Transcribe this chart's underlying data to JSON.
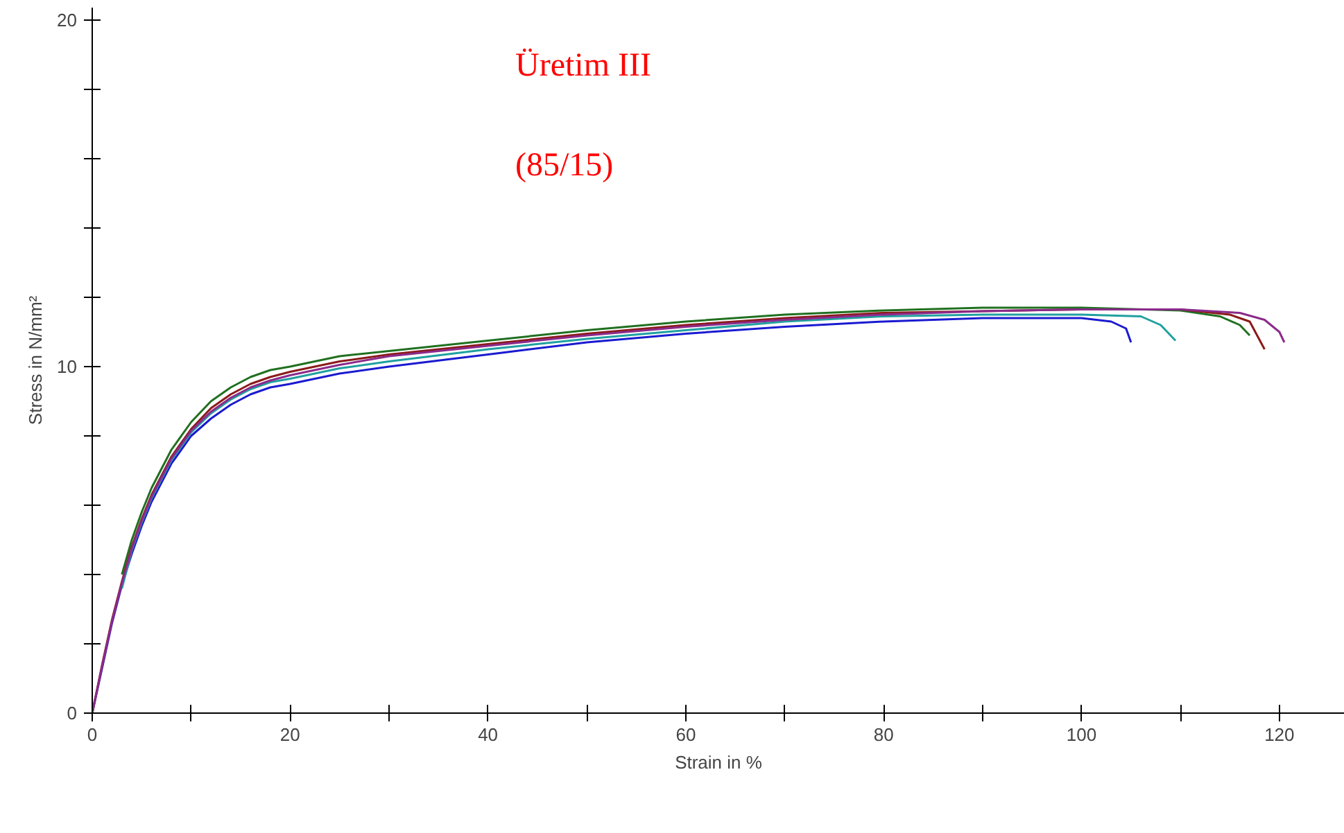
{
  "chart_data": {
    "type": "line",
    "title": "Üretim III",
    "subtitle": "(85/15)",
    "xlabel": "Strain in %",
    "ylabel": "Stress in N/mm²",
    "xlim": [
      0,
      126.6
    ],
    "ylim": [
      0,
      20.36
    ],
    "xticks": [
      0,
      {
        "value": 10,
        "label": null
      },
      20,
      {
        "value": 30,
        "label": null
      },
      40,
      {
        "value": 50,
        "label": null
      },
      60,
      {
        "value": 70,
        "label": null
      },
      80,
      {
        "value": 90,
        "label": null
      },
      100,
      {
        "value": 110,
        "label": null
      },
      120
    ],
    "yticks": [
      0,
      {
        "value": 2,
        "label": null
      },
      {
        "value": 4,
        "label": null
      },
      {
        "value": 6,
        "label": null
      },
      {
        "value": 8,
        "label": null
      },
      10,
      {
        "value": 12,
        "label": null
      },
      {
        "value": 14,
        "label": null
      },
      {
        "value": 16,
        "label": null
      },
      {
        "value": 18,
        "label": null
      },
      20
    ],
    "grid": false,
    "marker": "none",
    "line_style": "solid",
    "series": [
      {
        "color": "#1a1ad0",
        "x": [
          0,
          1,
          2,
          3,
          4,
          5,
          6,
          8,
          10,
          12,
          14,
          16,
          18,
          20,
          25,
          30,
          40,
          50,
          60,
          70,
          80,
          90,
          100,
          103,
          104.5,
          105
        ],
        "values": [
          0,
          1.3,
          2.6,
          3.7,
          4.6,
          5.4,
          6.1,
          7.2,
          8.0,
          8.5,
          8.9,
          9.2,
          9.4,
          9.5,
          9.8,
          10.0,
          10.35,
          10.7,
          10.95,
          11.15,
          11.3,
          11.4,
          11.4,
          11.3,
          11.1,
          10.7
        ]
      },
      {
        "color": "#20a0a0",
        "x": [
          3,
          4,
          5,
          6,
          8,
          10,
          12,
          14,
          16,
          18,
          20,
          25,
          30,
          40,
          50,
          60,
          70,
          80,
          90,
          100,
          106,
          108,
          109.5
        ],
        "values": [
          3.6,
          4.7,
          5.5,
          6.2,
          7.3,
          8.1,
          8.65,
          9.05,
          9.35,
          9.55,
          9.65,
          9.95,
          10.15,
          10.5,
          10.8,
          11.05,
          11.3,
          11.45,
          11.5,
          11.5,
          11.45,
          11.2,
          10.75
        ]
      },
      {
        "color": "#207020",
        "x": [
          3,
          4,
          5,
          6,
          8,
          10,
          12,
          14,
          16,
          18,
          20,
          25,
          30,
          40,
          50,
          60,
          70,
          80,
          90,
          100,
          110,
          114,
          116,
          117
        ],
        "values": [
          4.0,
          5.0,
          5.8,
          6.5,
          7.6,
          8.4,
          9.0,
          9.4,
          9.7,
          9.9,
          10.0,
          10.3,
          10.45,
          10.75,
          11.05,
          11.3,
          11.5,
          11.62,
          11.7,
          11.7,
          11.62,
          11.45,
          11.2,
          10.9
        ]
      },
      {
        "color": "#8b1a1a",
        "x": [
          0,
          1,
          2,
          3,
          4,
          5,
          6,
          8,
          10,
          12,
          14,
          16,
          18,
          20,
          25,
          30,
          40,
          50,
          60,
          70,
          80,
          90,
          100,
          110,
          115,
          117,
          118.5
        ],
        "values": [
          0,
          1.4,
          2.7,
          3.8,
          4.8,
          5.6,
          6.3,
          7.4,
          8.2,
          8.8,
          9.2,
          9.5,
          9.7,
          9.85,
          10.15,
          10.35,
          10.65,
          10.95,
          11.2,
          11.4,
          11.55,
          11.6,
          11.65,
          11.65,
          11.5,
          11.3,
          10.5
        ]
      },
      {
        "color": "#8b2a8b",
        "x": [
          0,
          1,
          2,
          3,
          4,
          5,
          6,
          8,
          10,
          12,
          14,
          16,
          18,
          20,
          25,
          30,
          40,
          50,
          60,
          70,
          80,
          90,
          100,
          110,
          116,
          118.5,
          120,
          120.5
        ],
        "values": [
          0,
          1.35,
          2.65,
          3.75,
          4.75,
          5.55,
          6.25,
          7.35,
          8.15,
          8.7,
          9.1,
          9.4,
          9.6,
          9.75,
          10.05,
          10.3,
          10.6,
          10.9,
          11.15,
          11.35,
          11.5,
          11.6,
          11.65,
          11.65,
          11.55,
          11.35,
          11.0,
          10.7
        ]
      }
    ]
  }
}
